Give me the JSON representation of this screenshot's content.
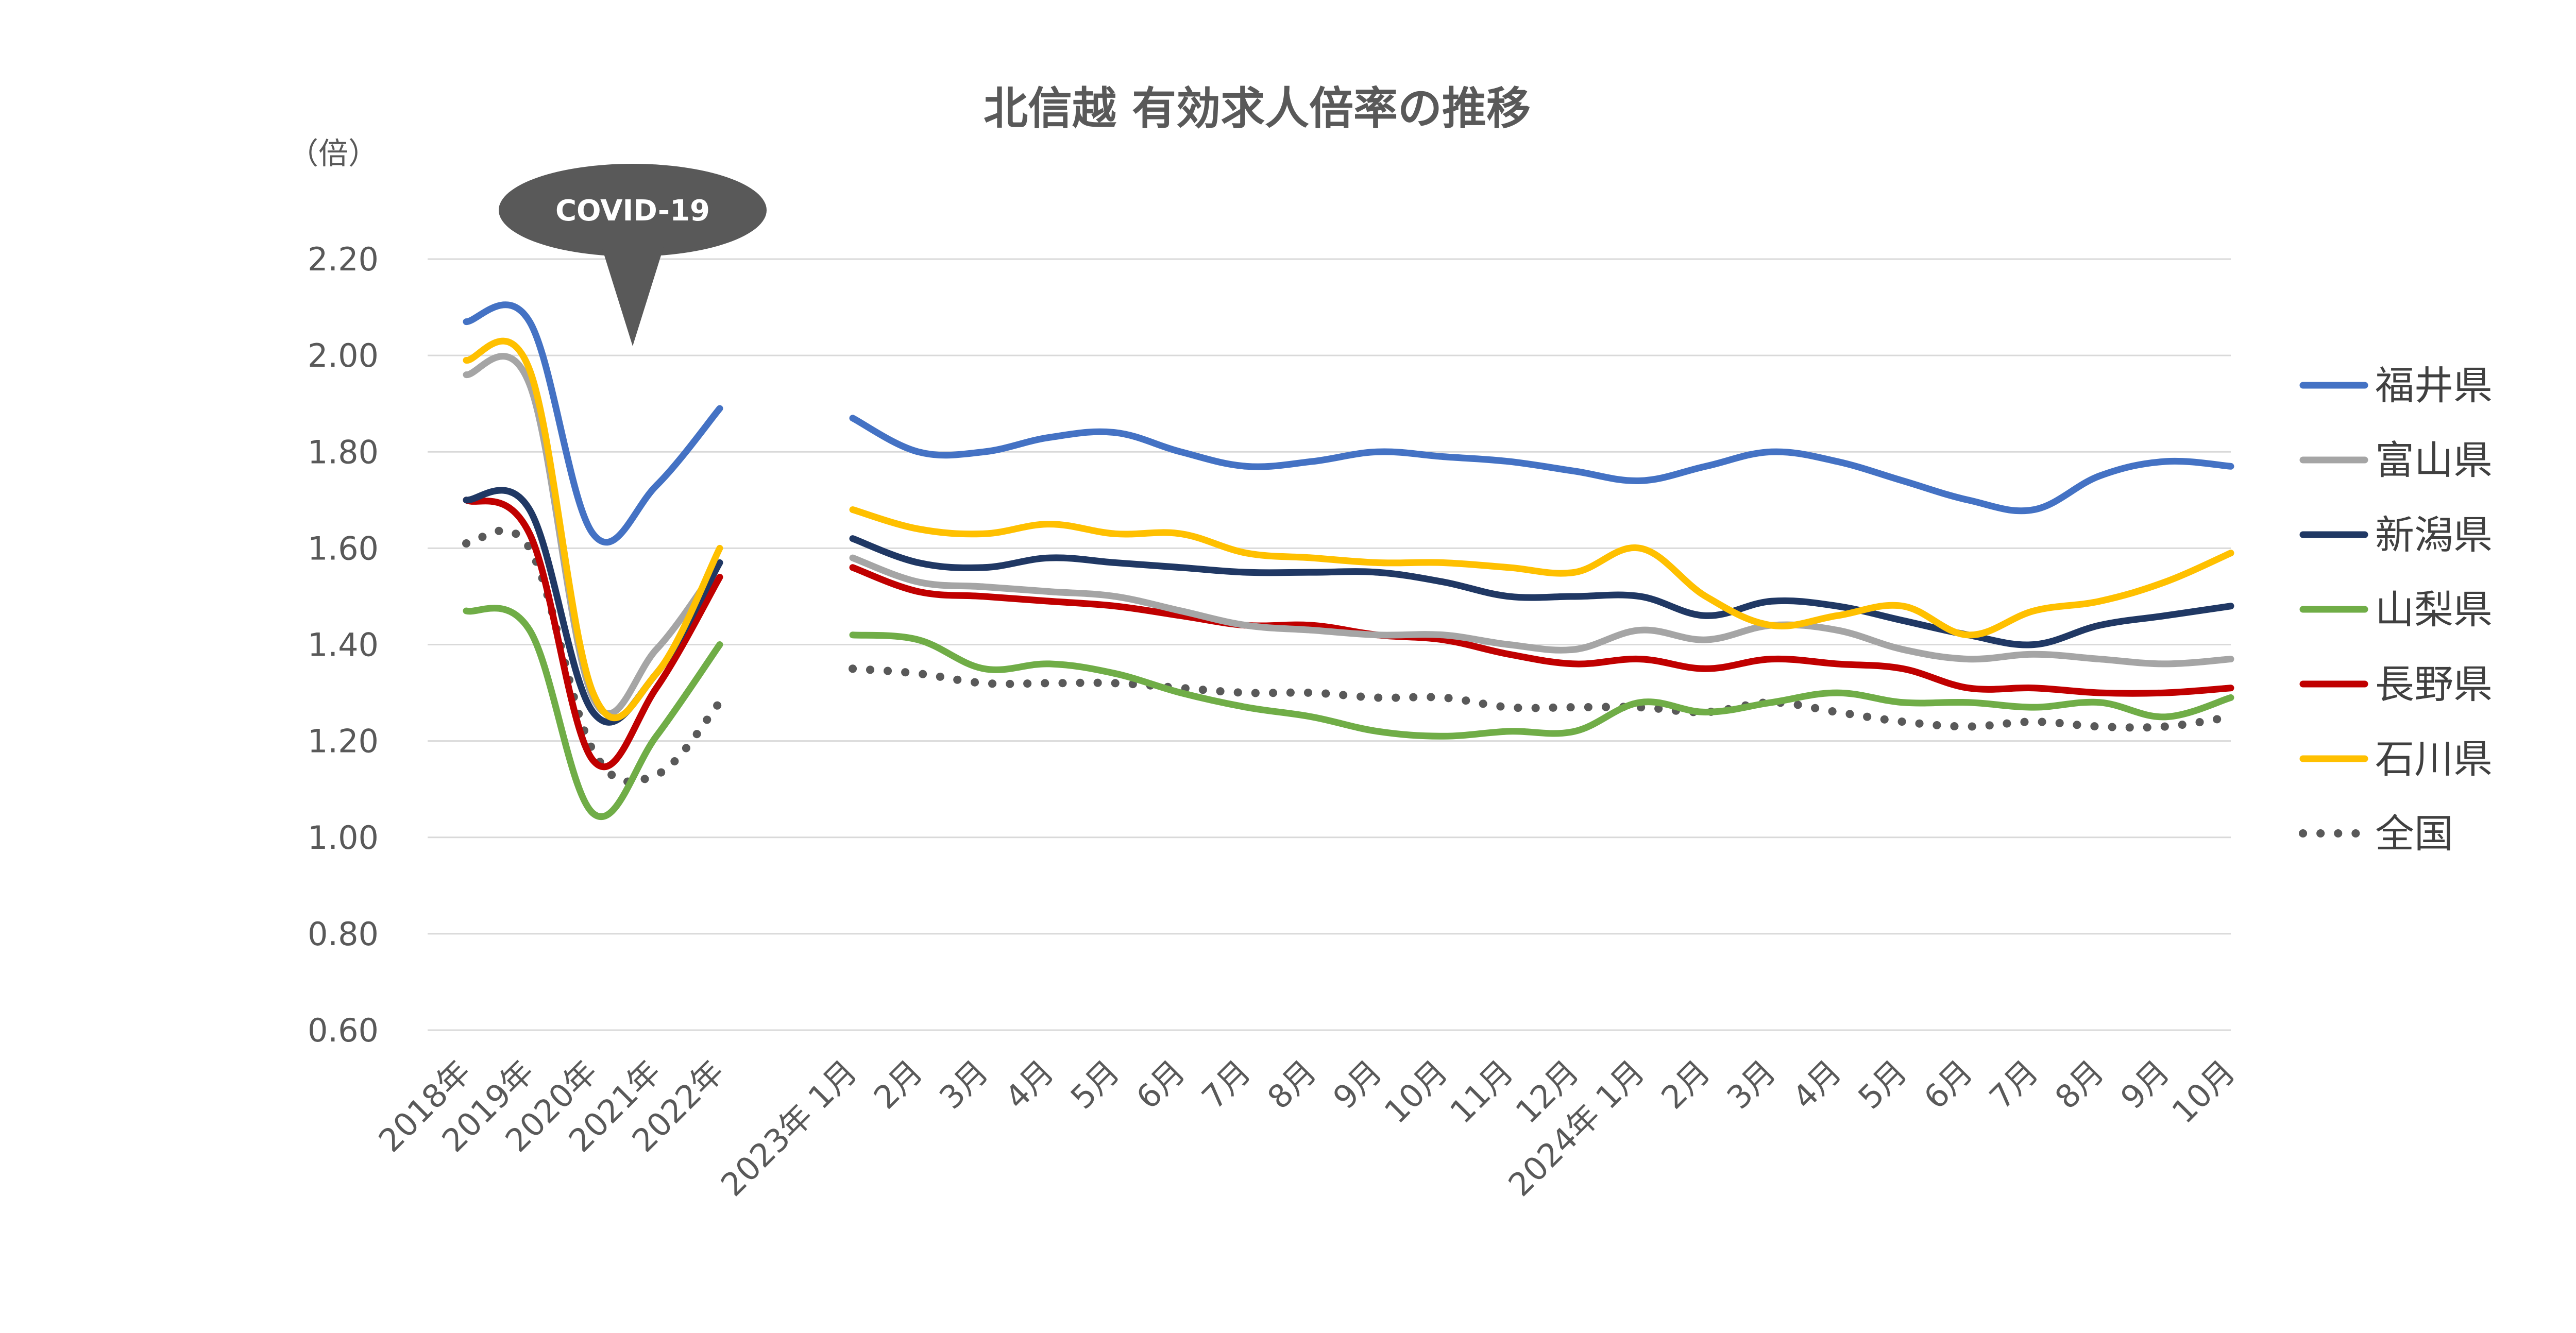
{
  "chart_data": {
    "type": "line",
    "title": "北信越 有効求人倍率の推移",
    "ylabel": "（倍）",
    "ylim": [
      0.6,
      2.2
    ],
    "yticks": [
      "0.60",
      "0.80",
      "1.00",
      "1.20",
      "1.40",
      "1.60",
      "1.80",
      "2.00",
      "2.20"
    ],
    "grid": true,
    "legend_position": "right",
    "annotation": "COVID-19",
    "categories": [
      "2018年",
      "2019年",
      "2020年",
      "2021年",
      "2022年",
      "2023年 1月",
      "2月",
      "3月",
      "4月",
      "5月",
      "6月",
      "7月",
      "8月",
      "9月",
      "10月",
      "11月",
      "12月",
      "2024年 1月",
      "2月",
      "3月",
      "4月",
      "5月",
      "6月",
      "7月",
      "8月",
      "9月",
      "10月"
    ],
    "series": [
      {
        "name": "福井県",
        "color": "#4472c4",
        "style": "solid",
        "values": [
          2.07,
          2.07,
          1.63,
          1.73,
          1.89,
          1.87,
          1.8,
          1.8,
          1.83,
          1.84,
          1.8,
          1.77,
          1.78,
          1.8,
          1.79,
          1.78,
          1.76,
          1.74,
          1.77,
          1.8,
          1.78,
          1.74,
          1.7,
          1.68,
          1.75,
          1.78,
          1.77
        ]
      },
      {
        "name": "富山県",
        "color": "#a5a5a5",
        "style": "solid",
        "values": [
          1.96,
          1.94,
          1.29,
          1.39,
          1.57,
          1.58,
          1.53,
          1.52,
          1.51,
          1.5,
          1.47,
          1.44,
          1.43,
          1.42,
          1.42,
          1.4,
          1.39,
          1.43,
          1.41,
          1.44,
          1.43,
          1.39,
          1.37,
          1.38,
          1.37,
          1.36,
          1.37
        ]
      },
      {
        "name": "新潟県",
        "color": "#203864",
        "style": "solid",
        "values": [
          1.7,
          1.68,
          1.26,
          1.34,
          1.57,
          1.62,
          1.57,
          1.56,
          1.58,
          1.57,
          1.56,
          1.55,
          1.55,
          1.55,
          1.53,
          1.5,
          1.5,
          1.5,
          1.46,
          1.49,
          1.48,
          1.45,
          1.42,
          1.4,
          1.44,
          1.46,
          1.48
        ]
      },
      {
        "name": "山梨県",
        "color": "#70ad47",
        "style": "solid",
        "values": [
          1.47,
          1.43,
          1.05,
          1.21,
          1.4,
          1.42,
          1.41,
          1.35,
          1.36,
          1.34,
          1.3,
          1.27,
          1.25,
          1.22,
          1.21,
          1.22,
          1.22,
          1.28,
          1.26,
          1.28,
          1.3,
          1.28,
          1.28,
          1.27,
          1.28,
          1.25,
          1.29
        ]
      },
      {
        "name": "長野県",
        "color": "#c00000",
        "style": "solid",
        "values": [
          1.7,
          1.63,
          1.16,
          1.31,
          1.54,
          1.56,
          1.51,
          1.5,
          1.49,
          1.48,
          1.46,
          1.44,
          1.44,
          1.42,
          1.41,
          1.38,
          1.36,
          1.37,
          1.35,
          1.37,
          1.36,
          1.35,
          1.31,
          1.31,
          1.3,
          1.3,
          1.31
        ]
      },
      {
        "name": "石川県",
        "color": "#ffc000",
        "style": "solid",
        "values": [
          1.99,
          1.97,
          1.3,
          1.34,
          1.6,
          1.68,
          1.64,
          1.63,
          1.65,
          1.63,
          1.63,
          1.59,
          1.58,
          1.57,
          1.57,
          1.56,
          1.55,
          1.6,
          1.5,
          1.44,
          1.46,
          1.48,
          1.42,
          1.47,
          1.49,
          1.53,
          1.59
        ]
      },
      {
        "name": "全国",
        "color": "#595959",
        "style": "dotted",
        "values": [
          1.61,
          1.6,
          1.18,
          1.13,
          1.28,
          1.35,
          1.34,
          1.32,
          1.32,
          1.32,
          1.31,
          1.3,
          1.3,
          1.29,
          1.29,
          1.27,
          1.27,
          1.27,
          1.26,
          1.28,
          1.26,
          1.24,
          1.23,
          1.24,
          1.23,
          1.23,
          1.25
        ]
      }
    ]
  }
}
